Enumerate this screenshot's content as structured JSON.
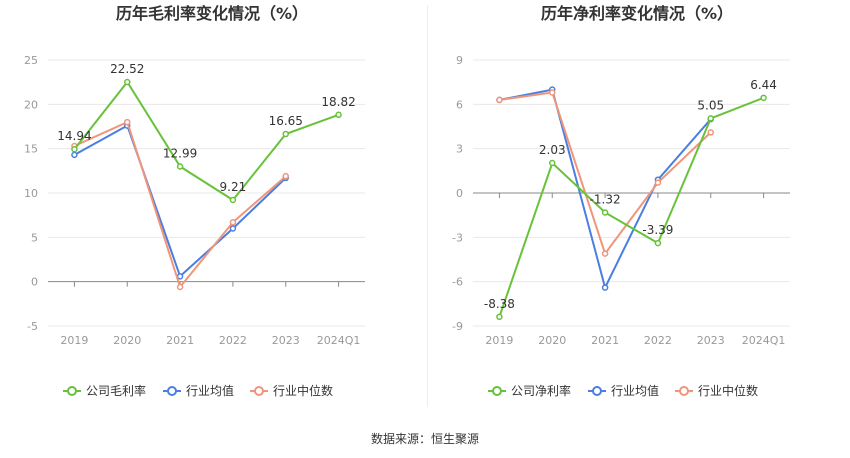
{
  "source_text": "数据来源：恒生聚源",
  "colors": {
    "company": "#67c23a",
    "industry_avg": "#4a7ee0",
    "industry_median": "#f0957a",
    "grid": "#e8e8e8",
    "axis": "#999999"
  },
  "chart_data": [
    {
      "type": "line",
      "title": "历年毛利率变化情况（%）",
      "categories": [
        "2019",
        "2020",
        "2021",
        "2022",
        "2023",
        "2024Q1"
      ],
      "ylim": [
        -5,
        25
      ],
      "yticks": [
        -5,
        0,
        5,
        10,
        15,
        20,
        25
      ],
      "grid": true,
      "legend_position": "bottom",
      "series": [
        {
          "name": "公司毛利率",
          "key": "company",
          "values": [
            14.94,
            22.52,
            12.99,
            9.21,
            16.65,
            18.82
          ],
          "labeled": true
        },
        {
          "name": "行业均值",
          "key": "industry_avg",
          "values": [
            14.3,
            17.6,
            0.6,
            6.0,
            11.7,
            null
          ],
          "labeled": false
        },
        {
          "name": "行业中位数",
          "key": "industry_median",
          "values": [
            15.3,
            18.0,
            -0.6,
            6.7,
            11.9,
            null
          ],
          "labeled": false
        }
      ]
    },
    {
      "type": "line",
      "title": "历年净利率变化情况（%）",
      "categories": [
        "2019",
        "2020",
        "2021",
        "2022",
        "2023",
        "2024Q1"
      ],
      "ylim": [
        -9,
        9
      ],
      "yticks": [
        -9,
        -6,
        -3,
        0,
        3,
        6,
        9
      ],
      "grid": true,
      "legend_position": "bottom",
      "series": [
        {
          "name": "公司净利率",
          "key": "company",
          "values": [
            -8.38,
            2.03,
            -1.32,
            -3.39,
            5.05,
            6.44
          ],
          "labeled": true
        },
        {
          "name": "行业均值",
          "key": "industry_avg",
          "values": [
            6.3,
            7.0,
            -6.4,
            0.9,
            5.0,
            null
          ],
          "labeled": false
        },
        {
          "name": "行业中位数",
          "key": "industry_median",
          "values": [
            6.3,
            6.8,
            -4.1,
            0.7,
            4.1,
            null
          ],
          "labeled": false
        }
      ]
    }
  ]
}
